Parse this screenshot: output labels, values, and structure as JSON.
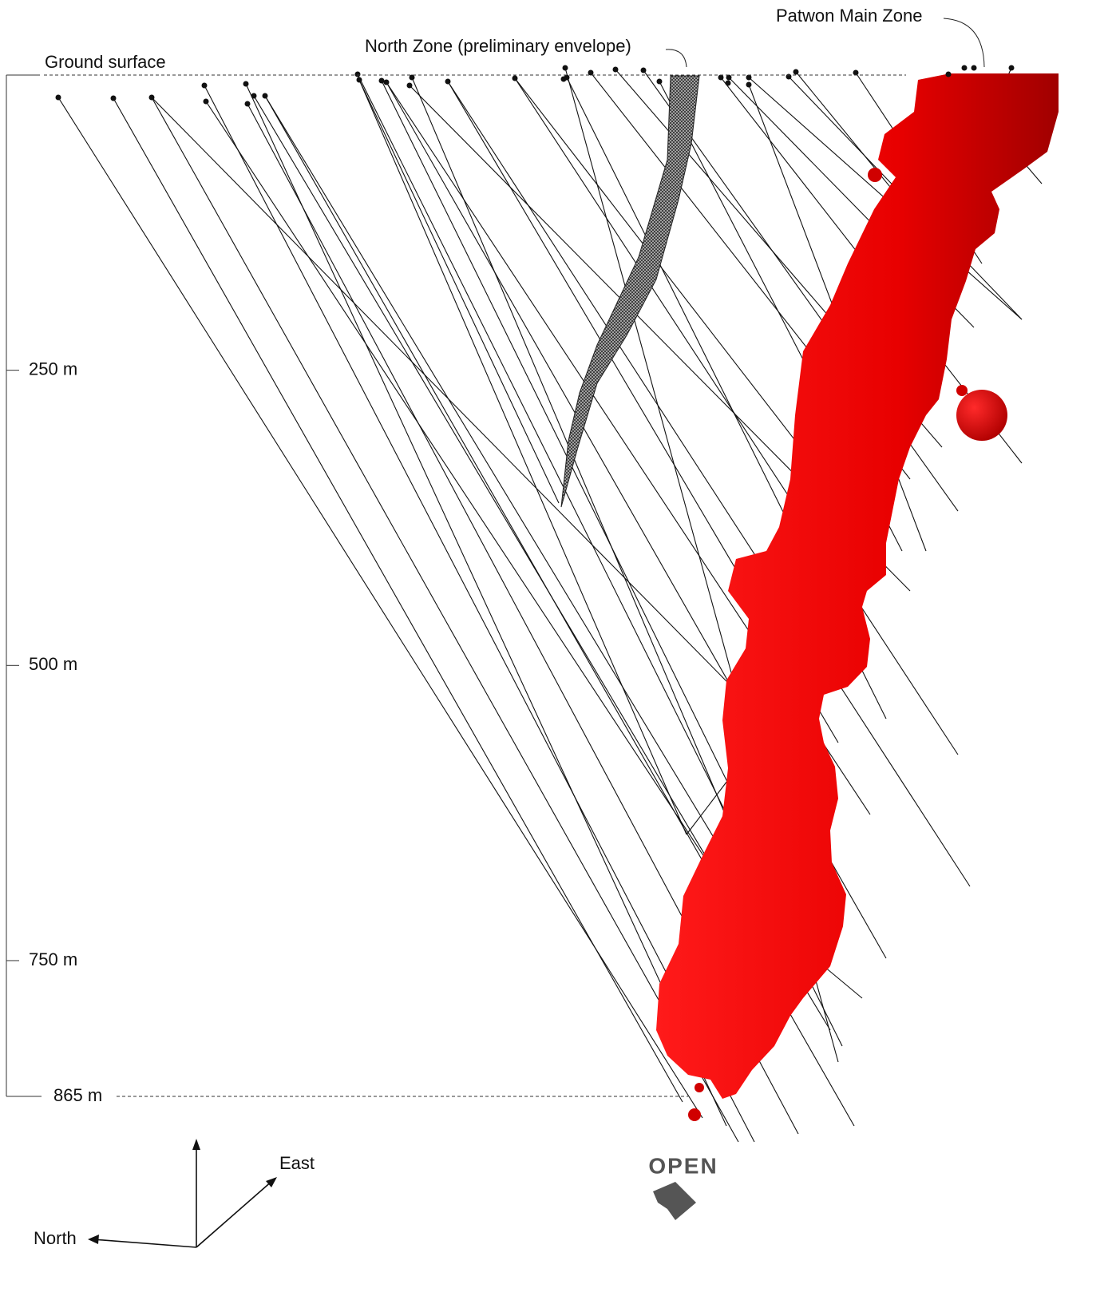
{
  "labels": {
    "ground_surface": "Ground surface",
    "north_zone": "North Zone (preliminary envelope)",
    "main_zone": "Patwon Main Zone",
    "open": "OPEN"
  },
  "depth_scale": {
    "ylim": [
      0,
      865
    ],
    "ticks": [
      {
        "value": 250,
        "label": "250 m"
      },
      {
        "value": 500,
        "label": "500 m"
      },
      {
        "value": 750,
        "label": "750 m"
      },
      {
        "value": 865,
        "label": "865 m"
      }
    ]
  },
  "compass": {
    "east": "East",
    "north": "North"
  }
}
